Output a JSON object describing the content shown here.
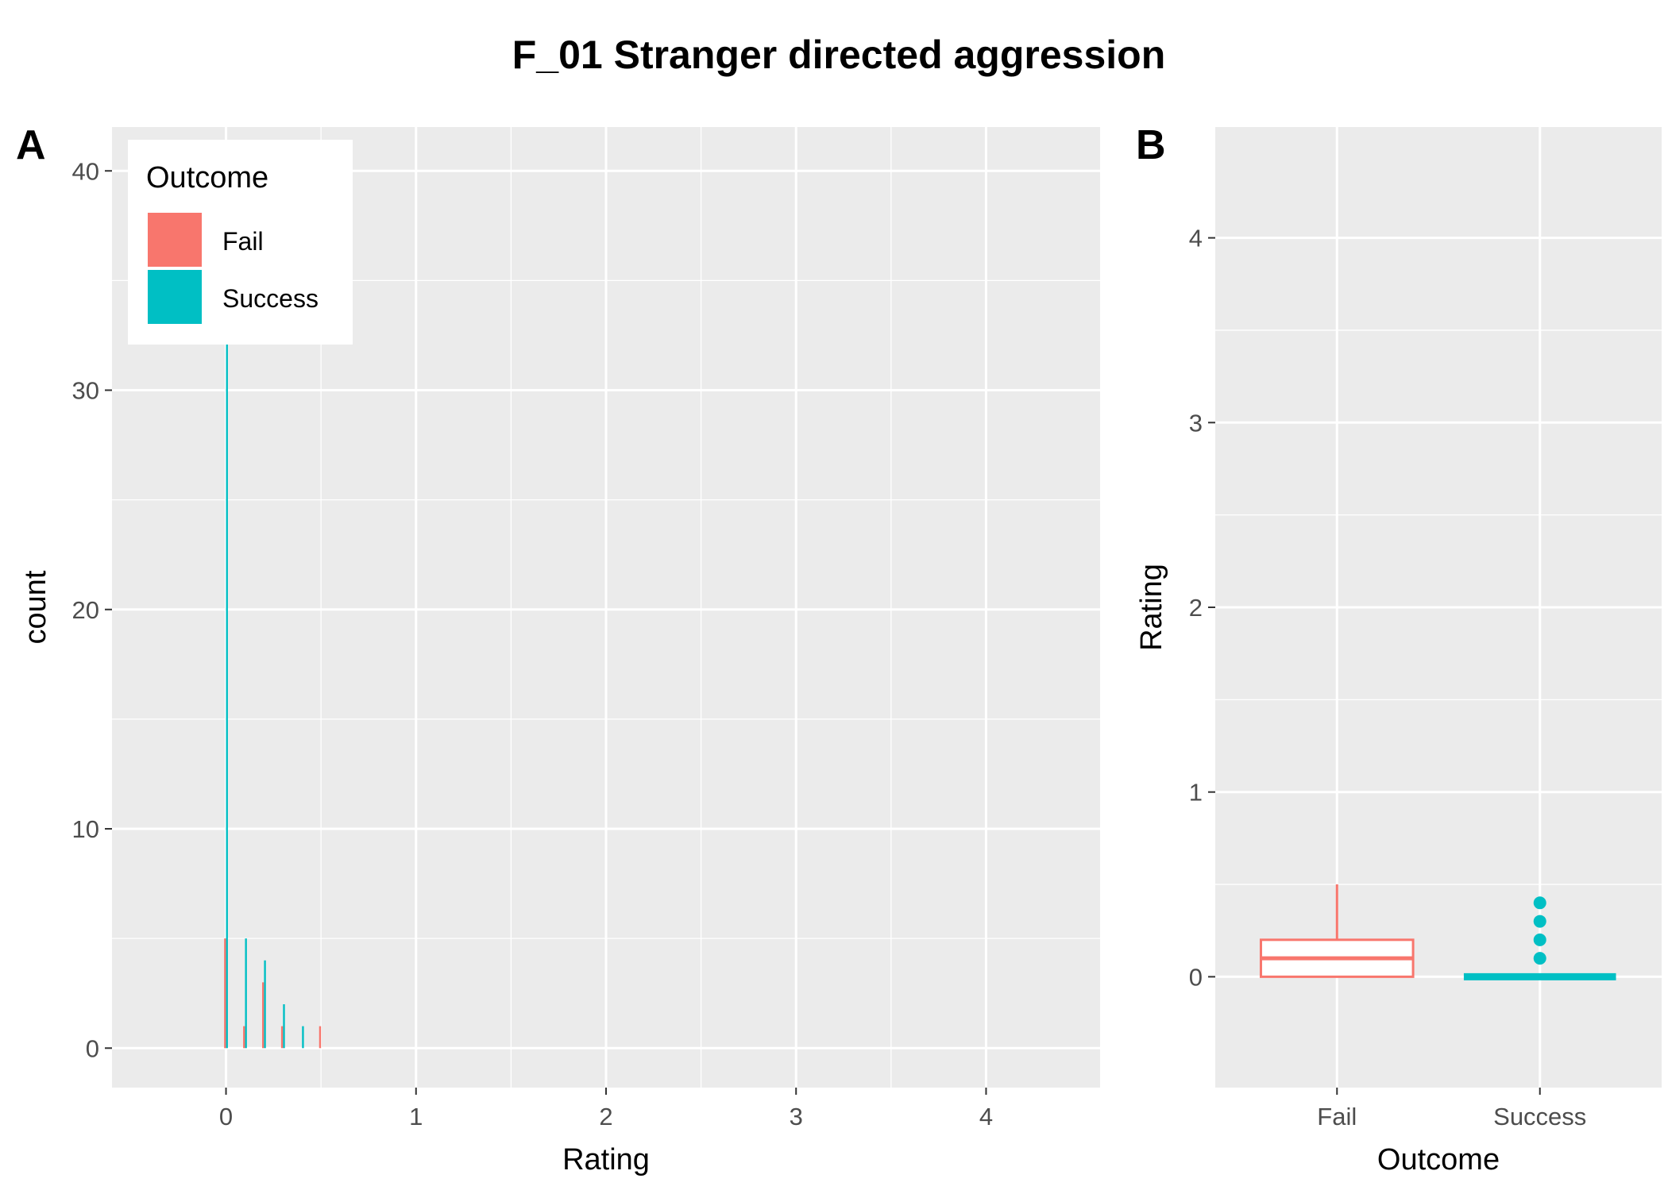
{
  "title": "F_01 Stranger directed aggression",
  "colors": {
    "fail": "#F8766D",
    "success": "#00BFC4",
    "panel_bg": "#EBEBEB",
    "grid": "#FFFFFF"
  },
  "chart_data": [
    {
      "panel": "A",
      "type": "bar",
      "xlabel": "Rating",
      "ylabel": "count",
      "xlim": [
        -0.6,
        4.6
      ],
      "ylim": [
        -1.8,
        42
      ],
      "xticks": [
        "0",
        "1",
        "2",
        "3",
        "4"
      ],
      "yticks": [
        "0",
        "10",
        "20",
        "30",
        "40"
      ],
      "bar_width": 0.01,
      "legend": {
        "title": "Outcome",
        "position": "top-left",
        "entries": [
          "Fail",
          "Success"
        ]
      },
      "series": [
        {
          "name": "Fail",
          "x": [
            0.0,
            0.1,
            0.2,
            0.3,
            0.4,
            0.5
          ],
          "values": [
            5,
            1,
            3,
            1,
            0,
            1
          ]
        },
        {
          "name": "Success",
          "x": [
            0.0,
            0.1,
            0.2,
            0.3,
            0.4,
            0.5
          ],
          "values": [
            40,
            5,
            4,
            2,
            1,
            0
          ]
        }
      ]
    },
    {
      "panel": "B",
      "type": "box",
      "xlabel": "Outcome",
      "ylabel": "Rating",
      "ylim": [
        -0.6,
        4.6
      ],
      "yticks": [
        "0",
        "1",
        "2",
        "3",
        "4"
      ],
      "categories": [
        "Fail",
        "Success"
      ],
      "boxes": [
        {
          "name": "Fail",
          "min": 0.0,
          "q1": 0.0,
          "median": 0.1,
          "q3": 0.2,
          "max": 0.5,
          "outliers": []
        },
        {
          "name": "Success",
          "min": 0.0,
          "q1": 0.0,
          "median": 0.0,
          "q3": 0.0,
          "max": 0.0,
          "outliers": [
            0.1,
            0.2,
            0.3,
            0.4
          ]
        }
      ]
    }
  ]
}
